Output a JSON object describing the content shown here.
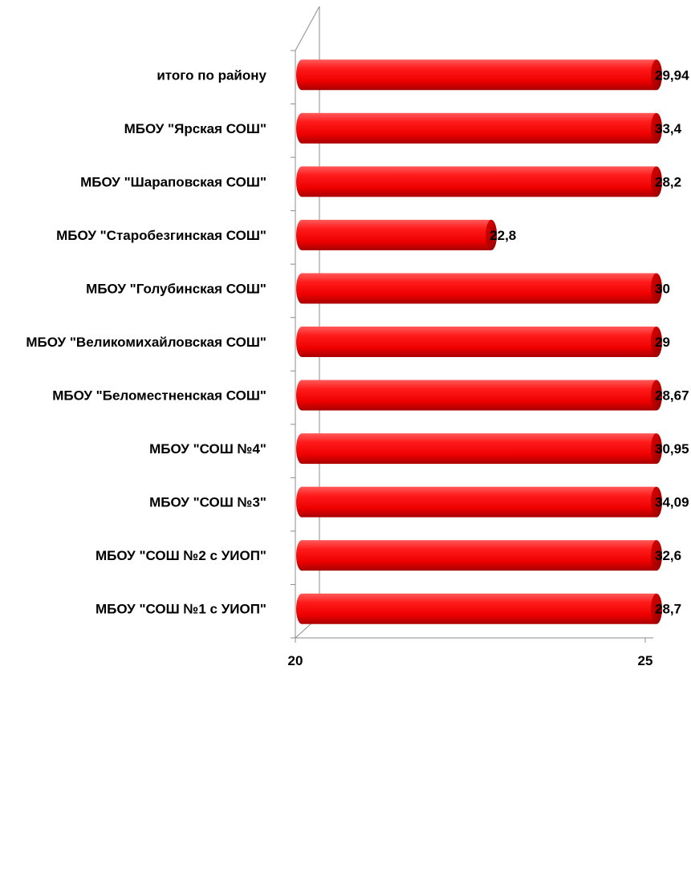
{
  "chart_data": {
    "type": "bar",
    "orientation": "horizontal",
    "style": "3d-cylinder",
    "categories": [
      "итого по району",
      "МБОУ \"Ярская СОШ\"",
      "МБОУ \"Шараповская  СОШ\"",
      "МБОУ \"Старобезгинская СОШ\"",
      "МБОУ \"Голубинская СОШ\"",
      "МБОУ \"Великомихайловская СОШ\"",
      "МБОУ \"Беломестненская СОШ\"",
      "МБОУ \"СОШ №4\"",
      "МБОУ \"СОШ №3\"",
      "МБОУ \"СОШ №2 с УИОП\"",
      "МБОУ \"СОШ №1 с УИОП\""
    ],
    "values": [
      29.94,
      33.4,
      28.2,
      22.8,
      30,
      29,
      28.67,
      30.95,
      34.09,
      32.6,
      28.7
    ],
    "value_labels": [
      "29,94",
      "33,4",
      "28,2",
      "22,8",
      "30",
      "29",
      "28,67",
      "30,95",
      "34,09",
      "32,6",
      "28,7"
    ],
    "xlim": [
      20,
      25
    ],
    "x_ticks": [
      "20",
      "25"
    ],
    "bar_color": "#ff0000",
    "bar_dark_color": "#b40000",
    "grid": false,
    "legend": "none"
  }
}
